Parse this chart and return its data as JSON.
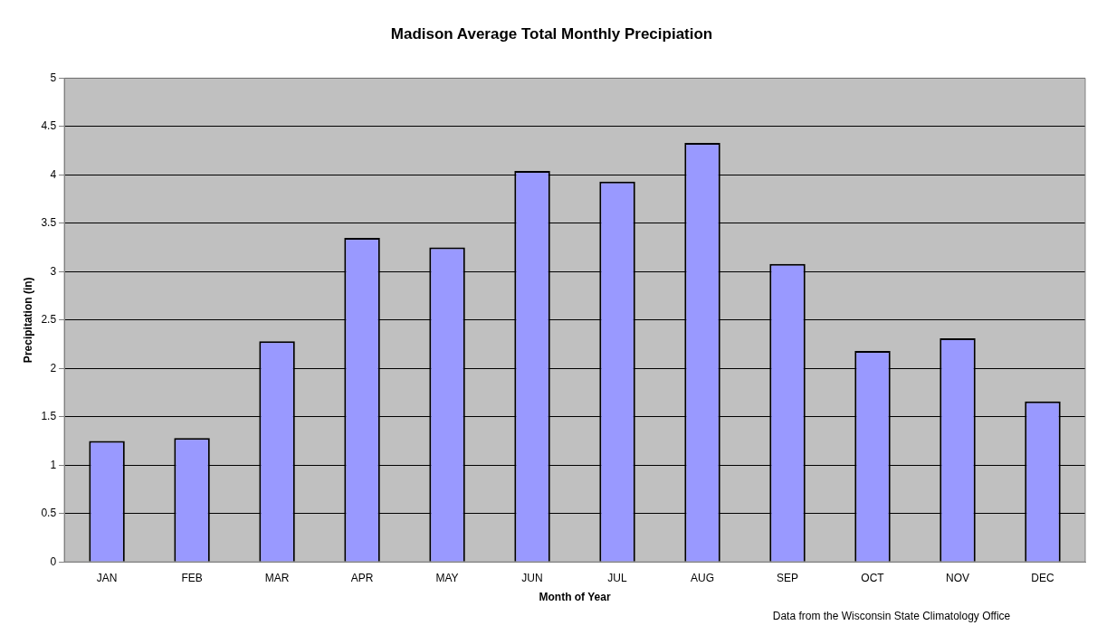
{
  "chart_data": {
    "type": "bar",
    "title": "Madison Average Total Monthly Precipiation",
    "xlabel": "Month of Year",
    "ylabel": "Precipitation (in)",
    "categories": [
      "JAN",
      "FEB",
      "MAR",
      "APR",
      "MAY",
      "JUN",
      "JUL",
      "AUG",
      "SEP",
      "OCT",
      "NOV",
      "DEC"
    ],
    "values": [
      1.25,
      1.28,
      2.28,
      3.35,
      3.25,
      4.04,
      3.93,
      4.33,
      3.08,
      2.18,
      2.31,
      1.66
    ],
    "color": "#9999ff",
    "ylim": [
      0,
      5
    ],
    "yticks": [
      0,
      0.5,
      1,
      1.5,
      2,
      2.5,
      3,
      3.5,
      4,
      4.5,
      5
    ],
    "grid": "y",
    "annotations": [
      "Data from the Wisconsin State Climatology Office"
    ]
  }
}
